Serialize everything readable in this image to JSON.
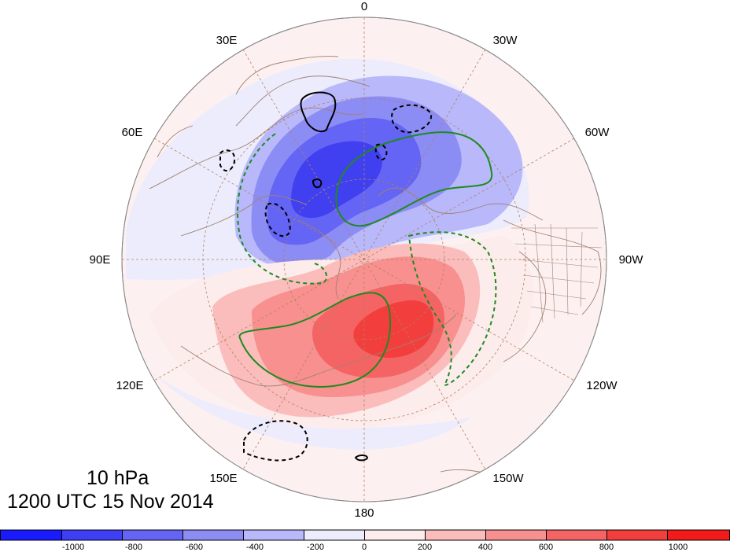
{
  "map": {
    "projection": "north-polar-stereographic",
    "field_fill": "geopotential height anomaly shading",
    "longitude_labels": [
      "0",
      "30W",
      "60W",
      "90W",
      "120W",
      "150W",
      "180",
      "150E",
      "120E",
      "90E",
      "60E",
      "30E"
    ],
    "title_level": "10 hPa",
    "title_time": "1200 UTC 15 Nov 2014"
  },
  "colorbar": {
    "levels": [
      "-1000",
      "-800",
      "-600",
      "-400",
      "-200",
      "0",
      "200",
      "400",
      "600",
      "800",
      "1000"
    ],
    "colors": [
      "#1a1aff",
      "#3e3ef5",
      "#6464f5",
      "#8c8cf5",
      "#b8b8fa",
      "#ececfd",
      "#fdecec",
      "#fbbcbc",
      "#f89090",
      "#f56464",
      "#f33e3e",
      "#f31a1a"
    ]
  },
  "colors": {
    "negative_core": "#4040f0",
    "positive_core": "#f03030",
    "contour_green": "#1f8a1f",
    "contour_black": "#000000",
    "coastline": "#a08270",
    "graticule": "#b08060"
  }
}
